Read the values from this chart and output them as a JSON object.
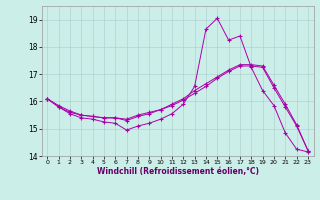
{
  "xlabel": "Windchill (Refroidissement éolien,°C)",
  "background_color": "#cceee8",
  "line_color": "#aa00aa",
  "xlim": [
    -0.5,
    23.5
  ],
  "ylim": [
    14.0,
    19.5
  ],
  "yticks": [
    14,
    15,
    16,
    17,
    18,
    19
  ],
  "xticks": [
    0,
    1,
    2,
    3,
    4,
    5,
    6,
    7,
    8,
    9,
    10,
    11,
    12,
    13,
    14,
    15,
    16,
    17,
    18,
    19,
    20,
    21,
    22,
    23
  ],
  "line1_x": [
    0,
    1,
    2,
    3,
    4,
    5,
    6,
    7,
    8,
    9,
    10,
    11,
    12,
    13,
    14,
    15,
    16,
    17,
    18,
    19,
    20,
    21,
    22,
    23
  ],
  "line1_y": [
    16.1,
    15.8,
    15.55,
    15.4,
    15.35,
    15.25,
    15.2,
    14.95,
    15.1,
    15.2,
    15.35,
    15.55,
    15.9,
    16.55,
    18.65,
    19.05,
    18.25,
    18.4,
    17.25,
    16.4,
    15.85,
    14.85,
    14.25,
    14.15
  ],
  "line2_x": [
    0,
    1,
    2,
    3,
    4,
    5,
    6,
    7,
    8,
    9,
    10,
    11,
    12,
    13,
    14,
    15,
    16,
    17,
    18,
    19,
    20,
    21,
    22,
    23
  ],
  "line2_y": [
    16.1,
    15.8,
    15.6,
    15.5,
    15.45,
    15.4,
    15.4,
    15.3,
    15.45,
    15.55,
    15.7,
    15.85,
    16.05,
    16.3,
    16.55,
    16.85,
    17.1,
    17.3,
    17.3,
    17.25,
    16.5,
    15.8,
    15.1,
    14.2
  ],
  "line3_x": [
    0,
    1,
    2,
    3,
    4,
    5,
    6,
    7,
    8,
    9,
    10,
    11,
    12,
    13,
    14,
    15,
    16,
    17,
    18,
    19,
    20,
    21,
    22,
    23
  ],
  "line3_y": [
    16.1,
    15.85,
    15.65,
    15.5,
    15.45,
    15.4,
    15.4,
    15.35,
    15.5,
    15.6,
    15.7,
    15.9,
    16.1,
    16.4,
    16.65,
    16.9,
    17.15,
    17.35,
    17.35,
    17.3,
    16.6,
    15.9,
    15.15,
    14.2
  ]
}
